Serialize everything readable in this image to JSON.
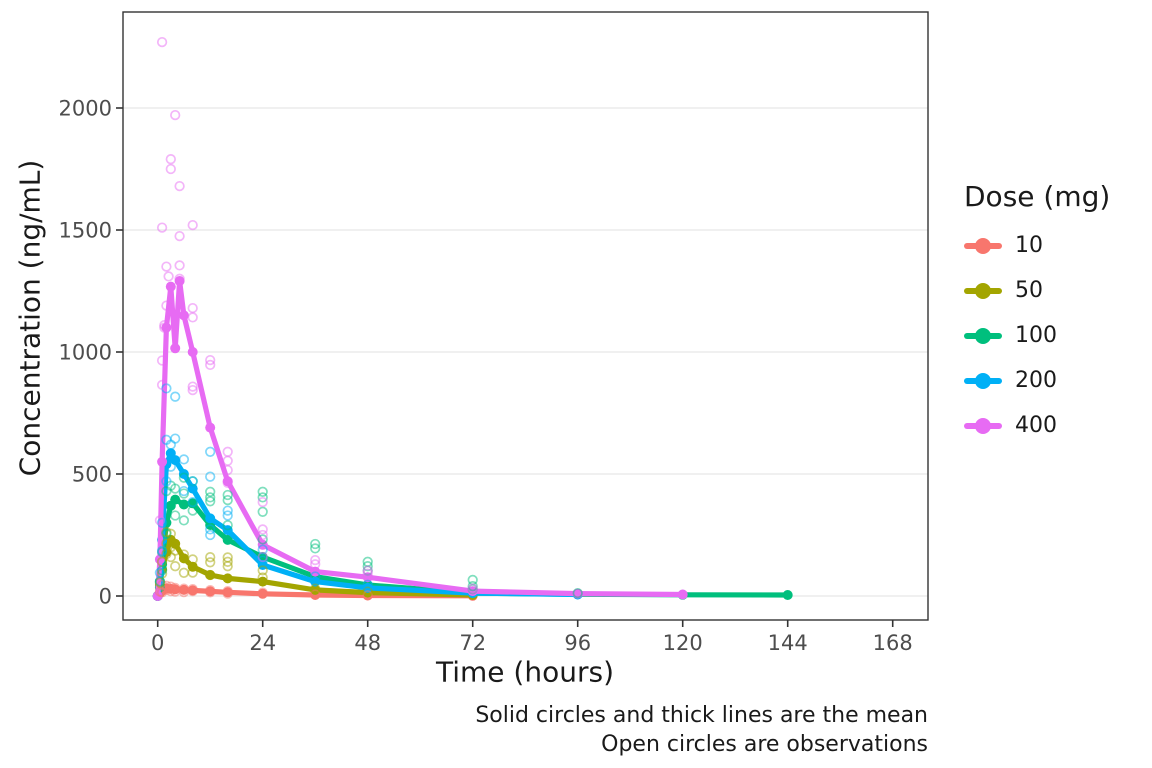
{
  "figure": {
    "background": "#ffffff",
    "panel_border_color": "#333333",
    "gridline_color": "#ebebeb",
    "tick_color": "#333333",
    "tick_label_color": "#4d4d4d",
    "text_color": "#1a1a1a"
  },
  "chart_data": {
    "type": "line",
    "title": "",
    "xlabel": "Time (hours)",
    "ylabel": "Concentration (ng/mL)",
    "x_ticks": [
      0,
      24,
      48,
      72,
      96,
      120,
      144,
      168
    ],
    "y_ticks": [
      0,
      500,
      1000,
      1500,
      2000
    ],
    "xlim": [
      -8,
      176
    ],
    "ylim": [
      -98,
      2381
    ],
    "grid": "horizontal major gridlines only",
    "legend": {
      "title": "Dose (mg)",
      "position": "right"
    },
    "annotation": {
      "line1": "Solid circles and thick lines are the mean",
      "line2": "Open circles are observations"
    },
    "series": [
      {
        "name": "10",
        "color": "#F8766D",
        "mean": {
          "t": [
            0,
            0.5,
            1,
            2,
            3,
            4,
            6,
            8,
            12,
            16,
            24,
            36,
            48,
            72
          ],
          "c": [
            0,
            12,
            22,
            31,
            29,
            27,
            25,
            23,
            19,
            15,
            9,
            4,
            2,
            1
          ]
        },
        "observations": [
          [
            0.5,
            18
          ],
          [
            1,
            45
          ],
          [
            1,
            15
          ],
          [
            2,
            42
          ],
          [
            2,
            25
          ],
          [
            3,
            38
          ],
          [
            3,
            20
          ],
          [
            4,
            33
          ],
          [
            4,
            18
          ],
          [
            6,
            30
          ],
          [
            6,
            16
          ],
          [
            8,
            28
          ],
          [
            8,
            20
          ],
          [
            12,
            24
          ],
          [
            12,
            15
          ],
          [
            16,
            20
          ],
          [
            16,
            10
          ],
          [
            24,
            14
          ],
          [
            36,
            6
          ],
          [
            48,
            3
          ]
        ]
      },
      {
        "name": "50",
        "color": "#A3A500",
        "mean": {
          "t": [
            0,
            0.5,
            1,
            2,
            3,
            4,
            6,
            8,
            12,
            16,
            24,
            36,
            48,
            72
          ],
          "c": [
            0,
            45,
            110,
            180,
            230,
            214,
            154,
            120,
            86,
            72,
            59,
            25,
            14,
            4
          ]
        },
        "observations": [
          [
            2,
            262
          ],
          [
            3,
            255
          ],
          [
            2,
            215
          ],
          [
            3,
            200
          ],
          [
            4,
            186
          ],
          [
            6,
            170
          ],
          [
            1,
            140
          ],
          [
            1,
            92
          ],
          [
            12,
            159
          ],
          [
            12,
            138
          ],
          [
            16,
            158
          ],
          [
            16,
            140
          ],
          [
            16,
            122
          ],
          [
            8,
            150
          ],
          [
            8,
            96
          ],
          [
            24,
            105
          ],
          [
            4,
            122
          ],
          [
            6,
            95
          ],
          [
            0.5,
            55
          ],
          [
            24,
            76
          ],
          [
            36,
            30
          ],
          [
            48,
            18
          ],
          [
            2,
            172
          ],
          [
            3,
            160
          ],
          [
            12,
            86
          ]
        ]
      },
      {
        "name": "100",
        "color": "#00BF7D",
        "mean": {
          "t": [
            0,
            0.5,
            1,
            2,
            3,
            4,
            6,
            8,
            12,
            16,
            24,
            36,
            48,
            72,
            96,
            120,
            144
          ],
          "c": [
            0,
            35,
            130,
            300,
            370,
            395,
            375,
            380,
            291,
            230,
            160,
            79,
            45,
            12,
            7,
            5,
            4
          ]
        },
        "observations": [
          [
            6,
            485
          ],
          [
            8,
            470
          ],
          [
            12,
            427
          ],
          [
            12,
            404
          ],
          [
            12,
            388
          ],
          [
            16,
            414
          ],
          [
            16,
            393
          ],
          [
            16,
            290
          ],
          [
            24,
            427
          ],
          [
            24,
            404
          ],
          [
            24,
            345
          ],
          [
            24,
            232
          ],
          [
            2,
            430
          ],
          [
            3,
            452
          ],
          [
            4,
            440
          ],
          [
            6,
            420
          ],
          [
            8,
            350
          ],
          [
            2,
            255
          ],
          [
            1,
            180
          ],
          [
            36,
            213
          ],
          [
            36,
            195
          ],
          [
            48,
            140
          ],
          [
            48,
            122
          ],
          [
            48,
            104
          ],
          [
            72,
            66
          ],
          [
            72,
            40
          ],
          [
            72,
            28
          ],
          [
            0.5,
            60
          ],
          [
            1,
            105
          ],
          [
            4,
            330
          ],
          [
            6,
            310
          ],
          [
            96,
            12
          ]
        ]
      },
      {
        "name": "200",
        "color": "#00B0F6",
        "mean": {
          "t": [
            0,
            0.5,
            1,
            2,
            3,
            4,
            6,
            8,
            12,
            16,
            24,
            36,
            48,
            72,
            96
          ],
          "c": [
            0,
            60,
            230,
            540,
            585,
            557,
            500,
            440,
            318,
            270,
            127,
            59,
            33,
            12,
            6
          ]
        },
        "observations": [
          [
            2,
            851
          ],
          [
            4,
            817
          ],
          [
            12,
            591
          ],
          [
            12,
            489
          ],
          [
            2,
            640
          ],
          [
            3,
            620
          ],
          [
            6,
            560
          ],
          [
            8,
            470
          ],
          [
            12,
            273
          ],
          [
            12,
            250
          ],
          [
            16,
            350
          ],
          [
            16,
            330
          ],
          [
            24,
            190
          ],
          [
            36,
            80
          ],
          [
            48,
            46
          ],
          [
            1,
            300
          ],
          [
            0.5,
            95
          ],
          [
            4,
            645
          ],
          [
            6,
            430
          ],
          [
            8,
            385
          ],
          [
            2,
            470
          ],
          [
            3,
            530
          ],
          [
            24,
            145
          ],
          [
            1,
            185
          ]
        ]
      },
      {
        "name": "400",
        "color": "#E76BF3",
        "mean": {
          "t": [
            0,
            0.5,
            1,
            2,
            3,
            4,
            5,
            6,
            8,
            12,
            16,
            24,
            36,
            48,
            72,
            96,
            120
          ],
          "c": [
            0,
            150,
            550,
            1100,
            1268,
            1015,
            1291,
            1150,
            1000,
            690,
            470,
            210,
            100,
            77,
            20,
            10,
            6
          ]
        },
        "observations": [
          [
            1,
            2270
          ],
          [
            4,
            1971
          ],
          [
            3,
            1790
          ],
          [
            3,
            1750
          ],
          [
            5,
            1680
          ],
          [
            8,
            1520
          ],
          [
            1,
            1510
          ],
          [
            5,
            1475
          ],
          [
            2,
            1350
          ],
          [
            5,
            1355
          ],
          [
            2.5,
            1310
          ],
          [
            5,
            1300
          ],
          [
            1.5,
            1110
          ],
          [
            1.5,
            1100
          ],
          [
            8,
            1180
          ],
          [
            8,
            1142
          ],
          [
            12,
            967
          ],
          [
            12,
            947
          ],
          [
            1,
            965
          ],
          [
            8,
            858
          ],
          [
            8,
            844
          ],
          [
            1,
            865
          ],
          [
            16,
            591
          ],
          [
            16,
            554
          ],
          [
            16,
            516
          ],
          [
            16,
            464
          ],
          [
            24,
            385
          ],
          [
            24,
            273
          ],
          [
            24,
            250
          ],
          [
            24,
            160
          ],
          [
            36,
            147
          ],
          [
            36,
            130
          ],
          [
            48,
            104
          ],
          [
            48,
            92
          ],
          [
            72,
            30
          ],
          [
            0.5,
            310
          ],
          [
            2,
            1190
          ]
        ]
      }
    ]
  }
}
